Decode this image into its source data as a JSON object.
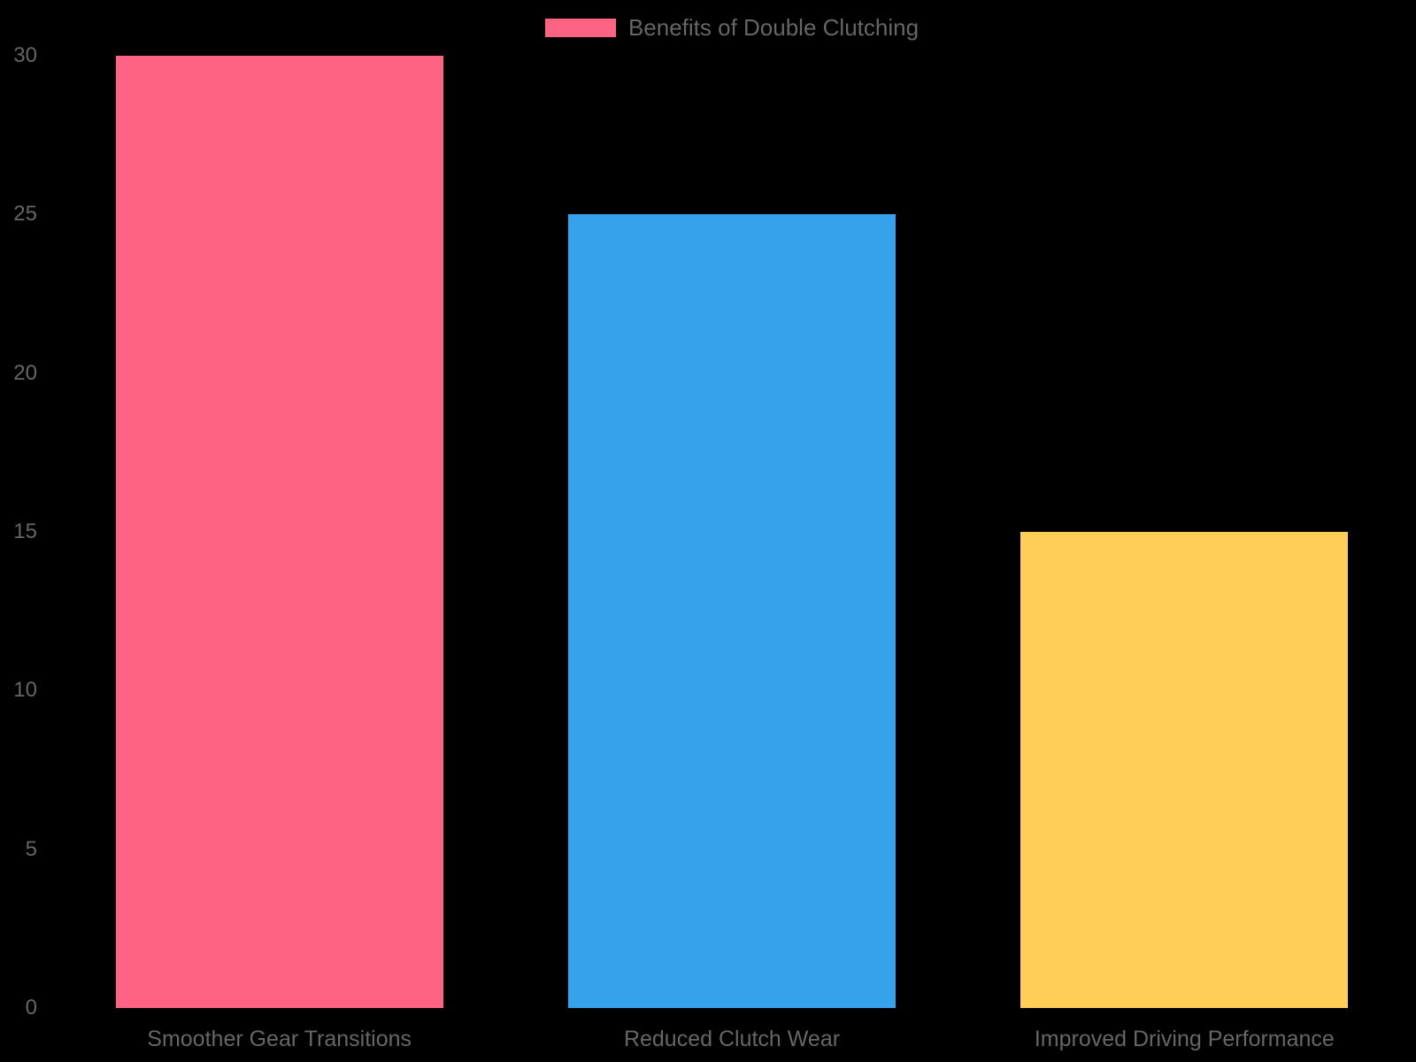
{
  "chart_data": {
    "type": "bar",
    "title": "",
    "legend": "Benefits of Double Clutching",
    "legend_position": "top",
    "categories": [
      "Smoother Gear Transitions",
      "Reduced Clutch Wear",
      "Improved Driving Performance"
    ],
    "values": [
      30,
      25,
      15
    ],
    "bar_colors": [
      "#FF6384",
      "#36A2EB",
      "#FFCE56"
    ],
    "y_ticks": [
      0,
      5,
      10,
      15,
      20,
      25,
      30
    ],
    "ylim": [
      0,
      30
    ],
    "xlabel": "",
    "ylabel": "",
    "grid": false,
    "background_color": "#000000",
    "text_color": "#666666",
    "legend_swatch_color": "#FF6384"
  }
}
